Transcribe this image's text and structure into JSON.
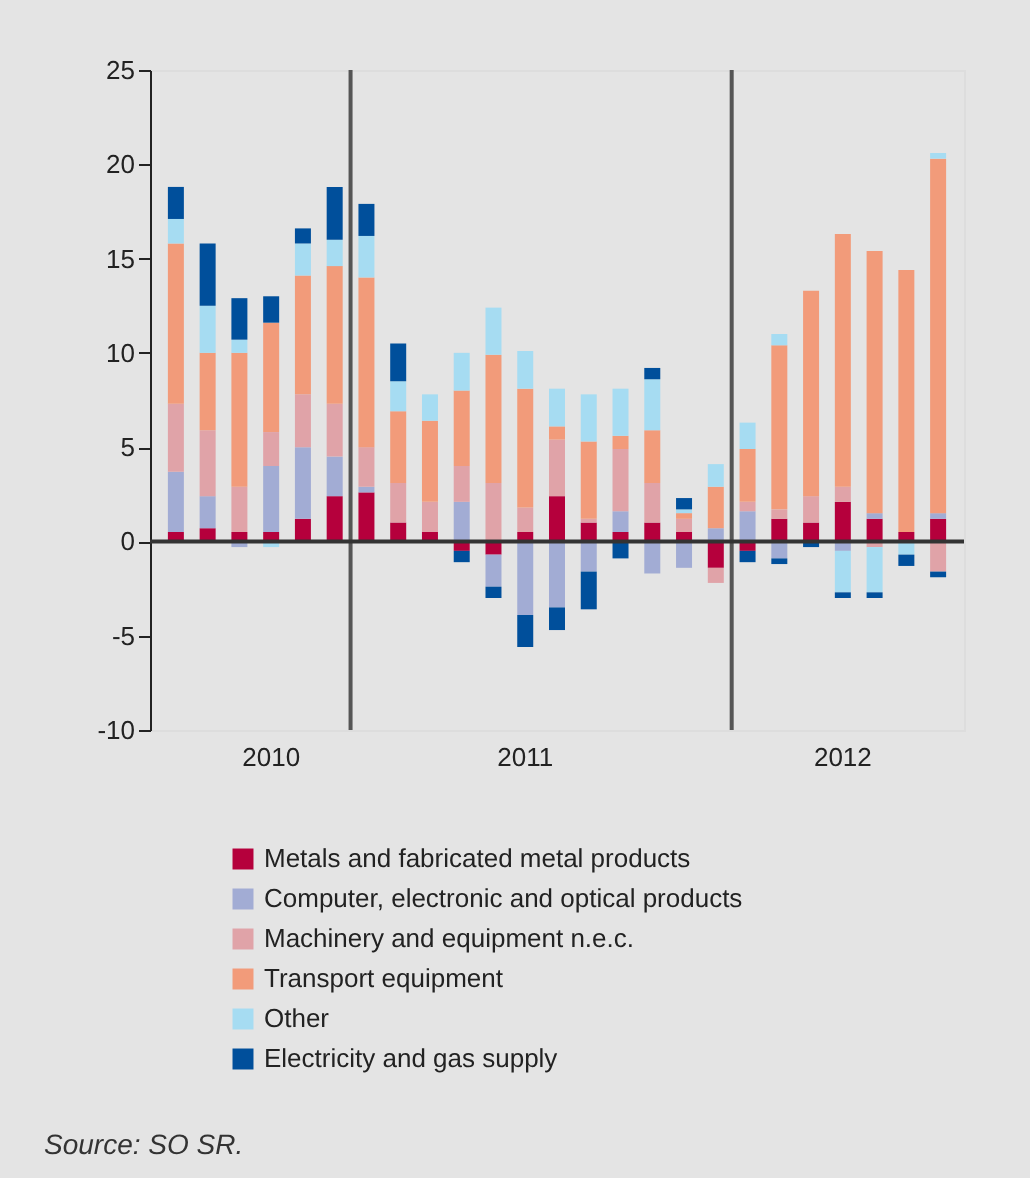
{
  "chart_data": {
    "type": "bar",
    "stacked": true,
    "categories": [
      null,
      null,
      null,
      "2010",
      null,
      null,
      null,
      null,
      null,
      null,
      null,
      "2011",
      null,
      null,
      null,
      null,
      null,
      null,
      null,
      null,
      null,
      "2012",
      null,
      null,
      null
    ],
    "ylim": [
      -10,
      25
    ],
    "yticks": [
      -10,
      -5,
      0,
      5,
      10,
      15,
      20,
      25
    ],
    "series": [
      {
        "name": "Metals and fabricated metal products",
        "color": "#b5003c",
        "values": [
          0.5,
          0.7,
          0.5,
          0.5,
          1.2,
          2.4,
          2.6,
          1.0,
          0.5,
          -0.5,
          -0.7,
          0.5,
          2.4,
          1.0,
          0.5,
          1.0,
          0.5,
          -1.4,
          -0.5,
          1.2,
          1.0,
          2.1,
          1.2,
          0.5,
          1.2
        ]
      },
      {
        "name": "Computer, electronic and optical products",
        "color": "#a2acd4",
        "values": [
          3.2,
          1.7,
          -0.3,
          3.5,
          3.8,
          2.1,
          0.3,
          null,
          null,
          2.1,
          -1.7,
          -3.9,
          -3.5,
          -1.6,
          1.1,
          -1.7,
          -1.4,
          0.7,
          1.6,
          -0.9,
          null,
          -0.5,
          0.3,
          null,
          0.3
        ]
      },
      {
        "name": "Machinery and equipment n.e.c.",
        "color": "#e0a3a8",
        "values": [
          3.6,
          3.5,
          2.4,
          1.8,
          2.8,
          2.8,
          2.1,
          2.1,
          1.6,
          1.9,
          3.1,
          1.3,
          3.0,
          0.2,
          3.3,
          2.1,
          0.7,
          -0.8,
          0.5,
          0.5,
          1.4,
          0.8,
          -0.3,
          null,
          -1.6
        ]
      },
      {
        "name": "Transport equipment",
        "color": "#f29b7a",
        "values": [
          8.5,
          4.1,
          7.1,
          5.8,
          6.3,
          7.3,
          9.0,
          3.8,
          4.3,
          4.0,
          6.8,
          6.3,
          0.7,
          4.1,
          0.7,
          2.8,
          0.3,
          2.2,
          2.8,
          8.7,
          10.9,
          13.4,
          13.9,
          13.9,
          18.8
        ]
      },
      {
        "name": "Other",
        "color": "#a6dcf2",
        "values": [
          1.3,
          2.5,
          0.7,
          -0.3,
          1.7,
          1.4,
          2.2,
          1.6,
          1.4,
          2.0,
          2.5,
          2.0,
          2.0,
          2.5,
          2.5,
          2.7,
          0.2,
          1.2,
          1.4,
          0.6,
          null,
          -2.2,
          -2.4,
          -0.7,
          0.3
        ]
      },
      {
        "name": "Electricity and gas supply",
        "color": "#004f9b",
        "values": [
          1.7,
          3.3,
          2.2,
          1.4,
          0.8,
          2.8,
          1.7,
          2.0,
          null,
          -0.6,
          -0.6,
          -1.7,
          -1.2,
          -2.0,
          -0.9,
          0.6,
          0.6,
          null,
          -0.6,
          -0.3,
          -0.3,
          -0.3,
          -0.3,
          -0.6,
          -0.3
        ]
      }
    ],
    "ref_lines": [
      {
        "axis": "y",
        "value": 0,
        "color": "#333333"
      }
    ],
    "legend": "bottom",
    "annotations": [
      "Source: SO SR."
    ]
  }
}
